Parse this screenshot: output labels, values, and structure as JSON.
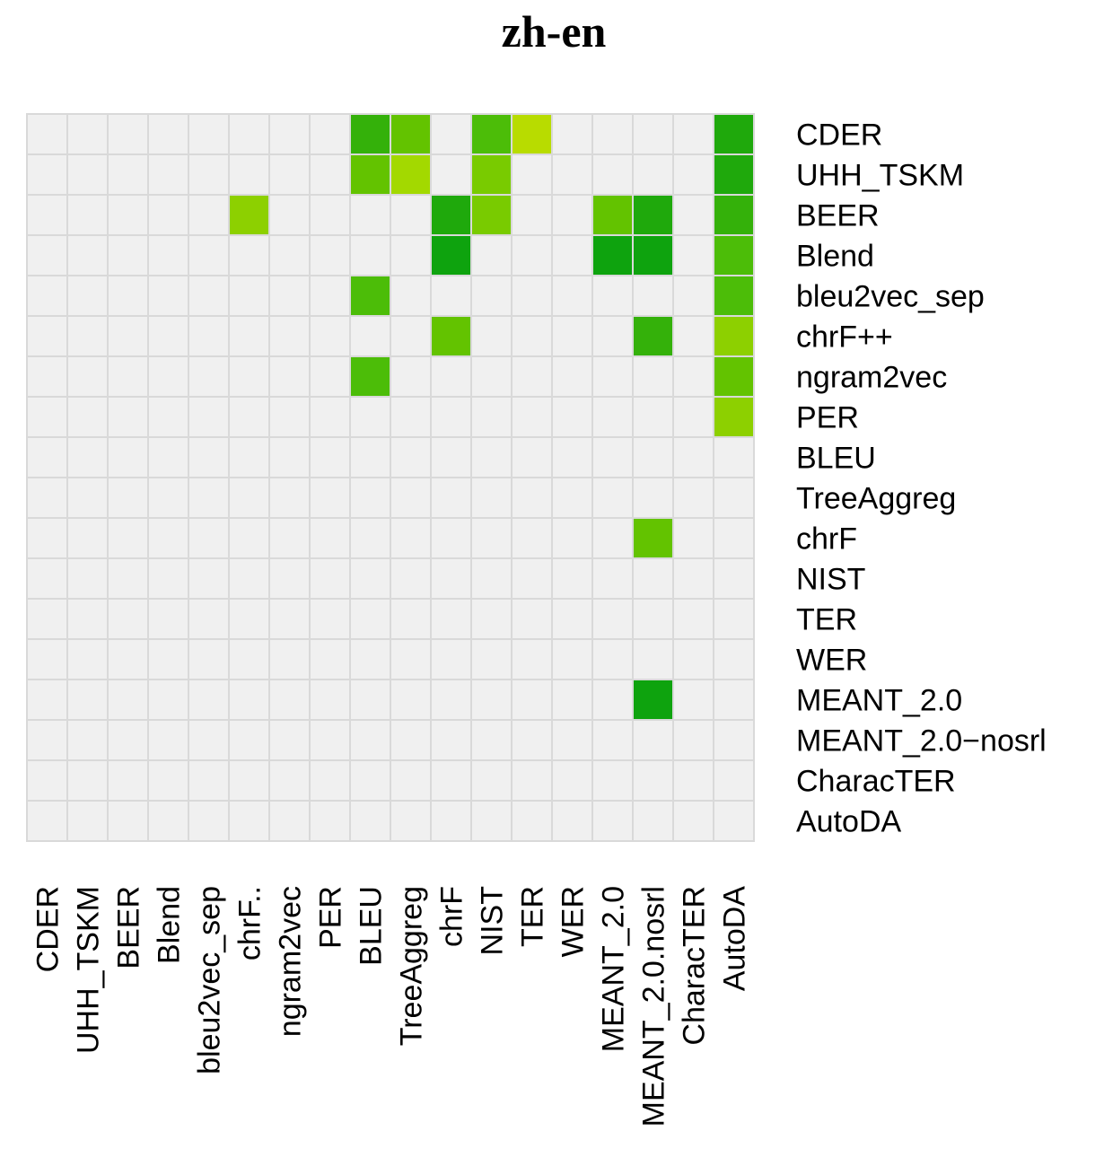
{
  "chart_data": {
    "type": "heatmap",
    "title": "zh-en",
    "xlabel": "",
    "ylabel": "",
    "row_labels": [
      "CDER",
      "UHH_TSKM",
      "BEER",
      "Blend",
      "bleu2vec_sep",
      "chrF++",
      "ngram2vec",
      "PER",
      "BLEU",
      "TreeAggreg",
      "chrF",
      "NIST",
      "TER",
      "WER",
      "MEANT_2.0",
      "MEANT_2.0−nosrl",
      "CharacTER",
      "AutoDA"
    ],
    "col_labels": [
      "CDER",
      "UHH_TSKM",
      "BEER",
      "Blend",
      "bleu2vec_sep",
      "chrF..",
      "ngram2vec",
      "PER",
      "BLEU",
      "TreeAggreg",
      "chrF",
      "NIST",
      "TER",
      "WER",
      "MEANT_2.0",
      "MEANT_2.0.nosrl",
      "CharacTER",
      "AutoDA"
    ],
    "empty_color": "#f0f0f0",
    "grid_color": "#d9d9d9",
    "colors": [
      "#f0f0f0",
      "#b8dc00",
      "#a3d900",
      "#8dd000",
      "#79cb00",
      "#63c300",
      "#4cbd08",
      "#34b10a",
      "#1fa90c",
      "#0ea30e"
    ],
    "cells": [
      [
        0,
        0,
        0,
        0,
        0,
        0,
        0,
        0,
        7,
        5,
        0,
        6,
        1,
        0,
        0,
        0,
        0,
        8
      ],
      [
        0,
        0,
        0,
        0,
        0,
        0,
        0,
        0,
        5,
        2,
        0,
        4,
        0,
        0,
        0,
        0,
        0,
        8
      ],
      [
        0,
        0,
        0,
        0,
        0,
        3,
        0,
        0,
        0,
        0,
        8,
        4,
        0,
        0,
        5,
        8,
        0,
        7
      ],
      [
        0,
        0,
        0,
        0,
        0,
        0,
        0,
        0,
        0,
        0,
        9,
        0,
        0,
        0,
        9,
        9,
        0,
        6
      ],
      [
        0,
        0,
        0,
        0,
        0,
        0,
        0,
        0,
        6,
        0,
        0,
        0,
        0,
        0,
        0,
        0,
        0,
        6
      ],
      [
        0,
        0,
        0,
        0,
        0,
        0,
        0,
        0,
        0,
        0,
        5,
        0,
        0,
        0,
        0,
        7,
        0,
        3
      ],
      [
        0,
        0,
        0,
        0,
        0,
        0,
        0,
        0,
        6,
        0,
        0,
        0,
        0,
        0,
        0,
        0,
        0,
        5
      ],
      [
        0,
        0,
        0,
        0,
        0,
        0,
        0,
        0,
        0,
        0,
        0,
        0,
        0,
        0,
        0,
        0,
        0,
        3
      ],
      [
        0,
        0,
        0,
        0,
        0,
        0,
        0,
        0,
        0,
        0,
        0,
        0,
        0,
        0,
        0,
        0,
        0,
        0
      ],
      [
        0,
        0,
        0,
        0,
        0,
        0,
        0,
        0,
        0,
        0,
        0,
        0,
        0,
        0,
        0,
        0,
        0,
        0
      ],
      [
        0,
        0,
        0,
        0,
        0,
        0,
        0,
        0,
        0,
        0,
        0,
        0,
        0,
        0,
        0,
        5,
        0,
        0
      ],
      [
        0,
        0,
        0,
        0,
        0,
        0,
        0,
        0,
        0,
        0,
        0,
        0,
        0,
        0,
        0,
        0,
        0,
        0
      ],
      [
        0,
        0,
        0,
        0,
        0,
        0,
        0,
        0,
        0,
        0,
        0,
        0,
        0,
        0,
        0,
        0,
        0,
        0
      ],
      [
        0,
        0,
        0,
        0,
        0,
        0,
        0,
        0,
        0,
        0,
        0,
        0,
        0,
        0,
        0,
        0,
        0,
        0
      ],
      [
        0,
        0,
        0,
        0,
        0,
        0,
        0,
        0,
        0,
        0,
        0,
        0,
        0,
        0,
        0,
        9,
        0,
        0
      ],
      [
        0,
        0,
        0,
        0,
        0,
        0,
        0,
        0,
        0,
        0,
        0,
        0,
        0,
        0,
        0,
        0,
        0,
        0
      ],
      [
        0,
        0,
        0,
        0,
        0,
        0,
        0,
        0,
        0,
        0,
        0,
        0,
        0,
        0,
        0,
        0,
        0,
        0
      ],
      [
        0,
        0,
        0,
        0,
        0,
        0,
        0,
        0,
        0,
        0,
        0,
        0,
        0,
        0,
        0,
        0,
        0,
        0
      ]
    ]
  }
}
